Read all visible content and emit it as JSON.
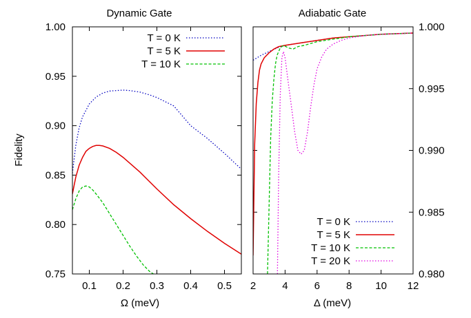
{
  "chart_data": [
    {
      "type": "line",
      "title": "Dynamic Gate",
      "xlabel": "Ω (meV)",
      "ylabel": "Fidelity",
      "xlim": [
        0.05,
        0.55
      ],
      "ylim": [
        0.75,
        1.0
      ],
      "xticks": [
        "0.1",
        "0.2",
        "0.3",
        "0.4",
        "0.5"
      ],
      "xtick_values": [
        0.1,
        0.2,
        0.3,
        0.4,
        0.5
      ],
      "yticks": [
        "0.75",
        "0.80",
        "0.85",
        "0.90",
        "0.95",
        "1.00"
      ],
      "ytick_values": [
        0.75,
        0.8,
        0.85,
        0.9,
        0.95,
        1.0
      ],
      "legend_position": "top-right",
      "grid": false,
      "series": [
        {
          "name": "T = 0 K",
          "color": "#0000c0",
          "dash": "dotted",
          "x": [
            0.05,
            0.06,
            0.07,
            0.08,
            0.1,
            0.12,
            0.14,
            0.16,
            0.18,
            0.2,
            0.22,
            0.25,
            0.28,
            0.3,
            0.35,
            0.4,
            0.45,
            0.5,
            0.55
          ],
          "y": [
            0.852,
            0.88,
            0.898,
            0.909,
            0.922,
            0.929,
            0.933,
            0.935,
            0.9355,
            0.936,
            0.9355,
            0.934,
            0.931,
            0.9285,
            0.92,
            0.9,
            0.887,
            0.872,
            0.856
          ]
        },
        {
          "name": "T = 5 K",
          "color": "#e00000",
          "dash": "solid",
          "x": [
            0.05,
            0.06,
            0.07,
            0.08,
            0.09,
            0.1,
            0.11,
            0.12,
            0.13,
            0.14,
            0.16,
            0.18,
            0.2,
            0.25,
            0.3,
            0.35,
            0.4,
            0.45,
            0.5,
            0.55
          ],
          "y": [
            0.831,
            0.848,
            0.86,
            0.868,
            0.874,
            0.877,
            0.879,
            0.88,
            0.88,
            0.8795,
            0.877,
            0.873,
            0.868,
            0.853,
            0.836,
            0.82,
            0.806,
            0.793,
            0.781,
            0.77
          ]
        },
        {
          "name": "T = 10 K",
          "color": "#00c000",
          "dash": "dashed",
          "x": [
            0.05,
            0.06,
            0.07,
            0.08,
            0.09,
            0.1,
            0.11,
            0.12,
            0.14,
            0.16,
            0.18,
            0.2,
            0.22,
            0.24,
            0.26,
            0.28,
            0.29
          ],
          "y": [
            0.815,
            0.826,
            0.834,
            0.838,
            0.839,
            0.838,
            0.835,
            0.831,
            0.822,
            0.811,
            0.8,
            0.789,
            0.778,
            0.768,
            0.759,
            0.752,
            0.75
          ]
        }
      ]
    },
    {
      "type": "line",
      "title": "Adiabatic Gate",
      "xlabel": "Δ (meV)",
      "ylabel": "",
      "xlim": [
        2,
        12
      ],
      "ylim": [
        0.98,
        1.0
      ],
      "xticks": [
        "2",
        "4",
        "6",
        "8",
        "10",
        "12"
      ],
      "xtick_values": [
        2,
        4,
        6,
        8,
        10,
        12
      ],
      "yticks": [
        "0.980",
        "0.985",
        "0.990",
        "0.995",
        "1.000"
      ],
      "ytick_values": [
        0.98,
        0.985,
        0.99,
        0.995,
        1.0
      ],
      "yaxis_side": "right",
      "legend_position": "bottom-right",
      "grid": false,
      "series": [
        {
          "name": "T = 0 K",
          "color": "#0000c0",
          "dash": "dotted",
          "x": [
            2.0,
            2.5,
            3.0,
            3.5,
            4.0,
            5.0,
            6.0,
            7.0,
            8.0,
            9.0,
            10.0,
            11.0,
            12.0
          ],
          "y": [
            0.9973,
            0.9977,
            0.998,
            0.9983,
            0.9985,
            0.9987,
            0.9989,
            0.9991,
            0.9992,
            0.9993,
            0.9994,
            0.99945,
            0.9995
          ]
        },
        {
          "name": "T = 5 K",
          "color": "#e00000",
          "dash": "solid",
          "x": [
            2.0,
            2.1,
            2.2,
            2.3,
            2.4,
            2.5,
            2.7,
            3.0,
            3.3,
            3.6,
            4.0,
            5.0,
            6.0,
            7.0,
            8.0,
            10.0,
            12.0
          ],
          "y": [
            0.9815,
            0.9905,
            0.9938,
            0.9955,
            0.9965,
            0.997,
            0.9975,
            0.9979,
            0.9982,
            0.9984,
            0.9985,
            0.9987,
            0.9989,
            0.9991,
            0.9992,
            0.9994,
            0.9995
          ]
        },
        {
          "name": "T = 10 K",
          "color": "#00c000",
          "dash": "dashed",
          "x": [
            2.9,
            3.0,
            3.1,
            3.2,
            3.3,
            3.4,
            3.5,
            3.7,
            3.9,
            4.2,
            4.5,
            4.8,
            5.2,
            6.0,
            7.0,
            8.0,
            10.0,
            12.0
          ],
          "y": [
            0.98,
            0.9855,
            0.991,
            0.994,
            0.9958,
            0.997,
            0.9977,
            0.9983,
            0.9985,
            0.9983,
            0.9982,
            0.9984,
            0.9985,
            0.9988,
            0.999,
            0.9992,
            0.9994,
            0.9995
          ]
        },
        {
          "name": "T = 20 K",
          "color": "#e000e0",
          "dash": "dotted",
          "x": [
            3.52,
            3.6,
            3.7,
            3.8,
            3.9,
            4.0,
            4.2,
            4.4,
            4.6,
            4.8,
            5.0,
            5.2,
            5.4,
            5.6,
            5.8,
            6.0,
            6.3,
            6.6,
            7.0,
            7.5,
            8.0,
            9.0,
            10.0,
            12.0
          ],
          "y": [
            0.98,
            0.988,
            0.9945,
            0.9975,
            0.998,
            0.9975,
            0.9955,
            0.9935,
            0.9915,
            0.99,
            0.9897,
            0.99,
            0.9915,
            0.9935,
            0.9953,
            0.9966,
            0.9976,
            0.9982,
            0.9986,
            0.9989,
            0.9991,
            0.9993,
            0.9994,
            0.9995
          ]
        }
      ]
    }
  ]
}
